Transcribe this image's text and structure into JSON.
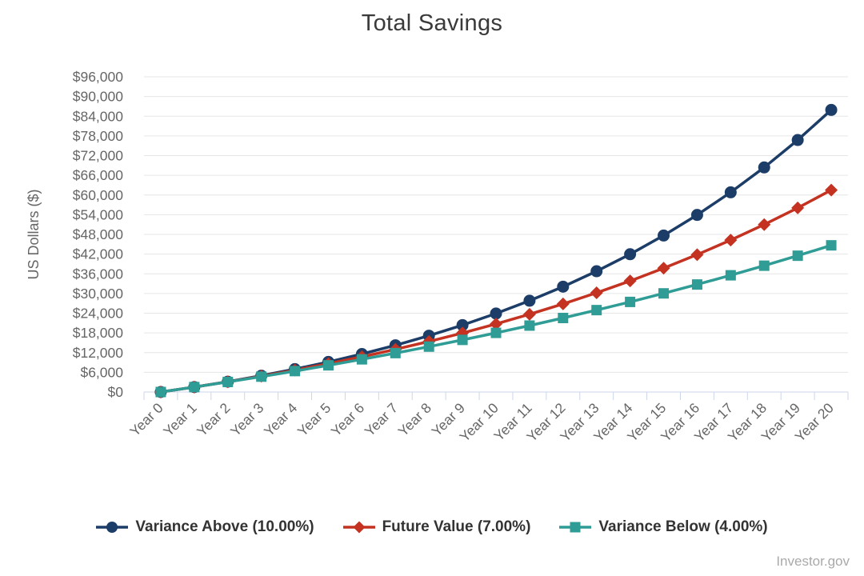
{
  "page": {
    "background": "#ffffff"
  },
  "chart_data": {
    "type": "line",
    "title": "Total Savings",
    "xlabel": "",
    "ylabel": "US Dollars ($)",
    "ylim": [
      0,
      96000
    ],
    "ytick_step": 6000,
    "ytick_labels": [
      "$0",
      "$6,000",
      "$12,000",
      "$18,000",
      "$24,000",
      "$30,000",
      "$36,000",
      "$42,000",
      "$48,000",
      "$54,000",
      "$60,000",
      "$66,000",
      "$72,000",
      "$78,000",
      "$84,000",
      "$90,000",
      "$96,000"
    ],
    "grid": "horizontal",
    "legend_position": "bottom",
    "categories": [
      "Year 0",
      "Year 1",
      "Year 2",
      "Year 3",
      "Year 4",
      "Year 5",
      "Year 6",
      "Year 7",
      "Year 8",
      "Year 9",
      "Year 10",
      "Year 11",
      "Year 12",
      "Year 13",
      "Year 14",
      "Year 15",
      "Year 16",
      "Year 17",
      "Year 18",
      "Year 19",
      "Year 20"
    ],
    "series": [
      {
        "name": "Variance Above (10.00%)",
        "rate": "10.00%",
        "color": "#1C3D67",
        "marker": "circle",
        "values": [
          0,
          1500,
          3150,
          4965,
          6962,
          9158,
          11573,
          14231,
          17154,
          20369,
          23906,
          27797,
          32076,
          36784,
          41963,
          47659,
          53925,
          60817,
          68399,
          76739,
          85912
        ]
      },
      {
        "name": "Future Value (7.00%)",
        "rate": "7.00%",
        "color": "#C43221",
        "marker": "diamond",
        "values": [
          0,
          1500,
          3105,
          4822,
          6660,
          8626,
          10730,
          12981,
          15390,
          17967,
          20725,
          23675,
          26833,
          30211,
          33826,
          37694,
          41832,
          46260,
          50999,
          56068,
          61493
        ]
      },
      {
        "name": "Variance Below (4.00%)",
        "rate": "4.00%",
        "color": "#2F9C96",
        "marker": "square",
        "values": [
          0,
          1500,
          3060,
          4682,
          6370,
          8124,
          9949,
          11847,
          13821,
          15874,
          18009,
          20230,
          22539,
          24940,
          27438,
          30035,
          32737,
          35546,
          38468,
          41507,
          44667
        ]
      }
    ]
  },
  "footer": {
    "credit": "Investor.gov"
  },
  "colors": {
    "grid": "#e6e6e6",
    "axis": "#ccd6eb",
    "axis_text": "#666666",
    "title_text": "#3a3a3a",
    "legend_text": "#333333",
    "credit_text": "#a9a9a9"
  }
}
